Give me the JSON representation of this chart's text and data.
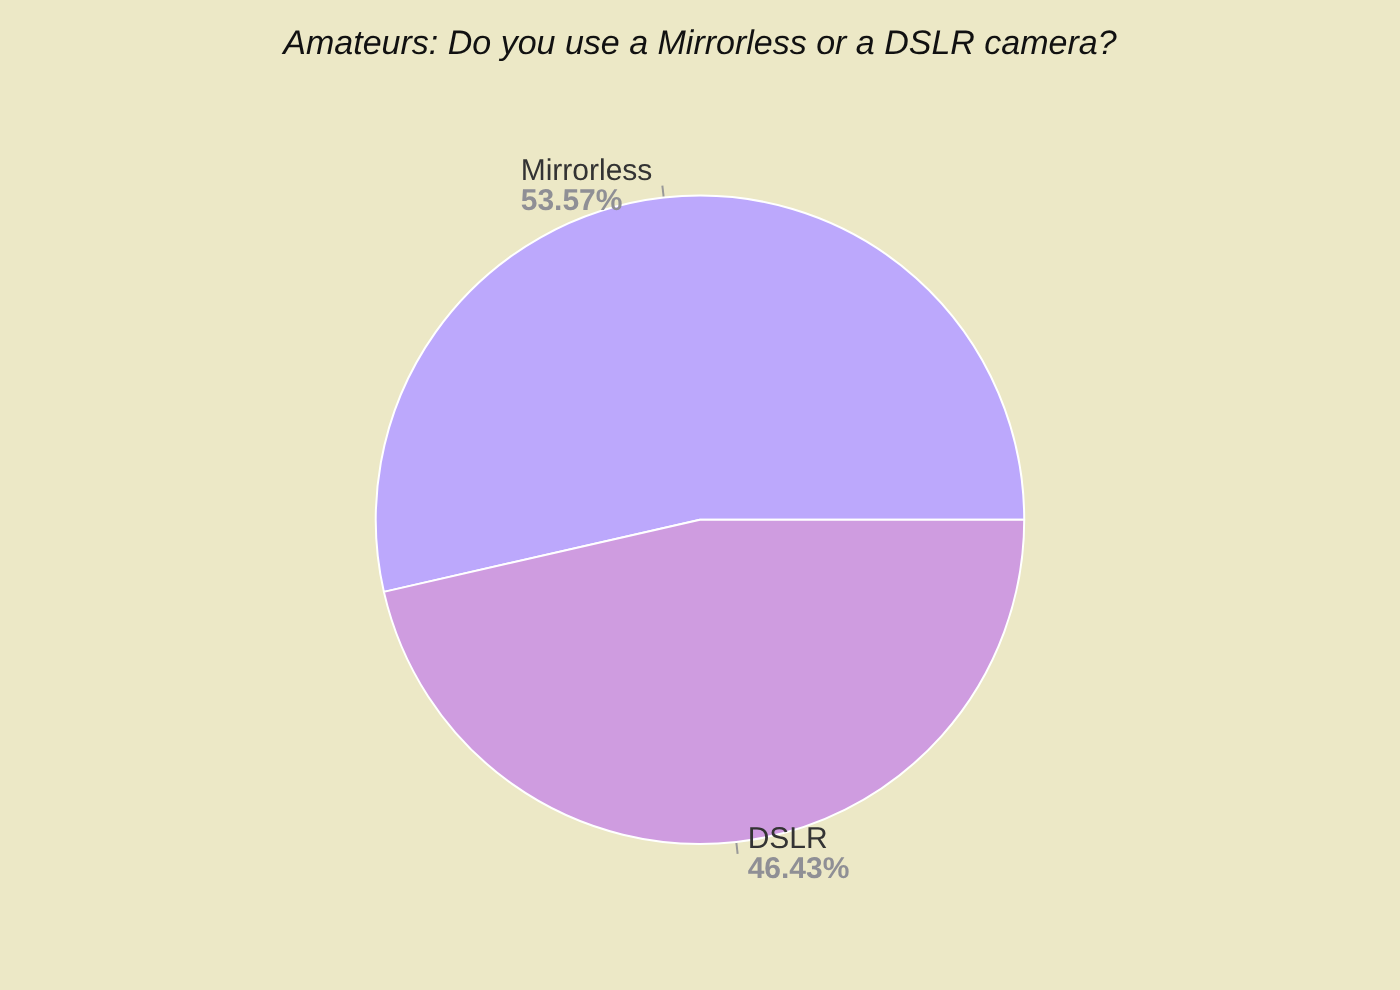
{
  "chart_data": {
    "type": "pie",
    "title": "Amateurs: Do you use a Mirrorless or a DSLR camera?",
    "categories": [
      "Mirrorless",
      "DSLR"
    ],
    "values": [
      53.57,
      46.43
    ],
    "value_labels": [
      "53.57%",
      "46.43%"
    ],
    "colors": [
      "#bca8fc",
      "#cf9ce0"
    ],
    "legend": false
  }
}
